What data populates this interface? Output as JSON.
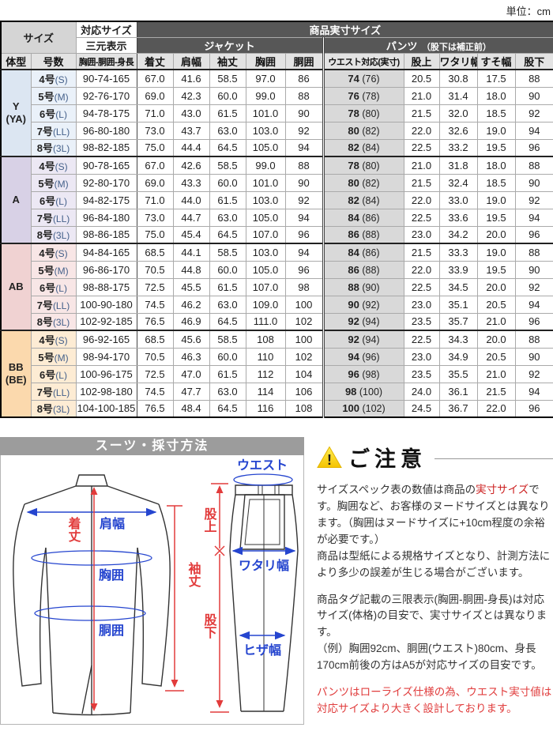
{
  "unit_label": "単位：cm",
  "table": {
    "header": {
      "size_label": "サイズ",
      "taio_size": "対応サイズ",
      "jissun_size": "商品実寸サイズ",
      "sangen": "三元表示",
      "jacket": "ジャケット",
      "pants_label": "パンツ",
      "pants_note": "　（股下は補正前）",
      "columns": [
        "体型",
        "号数",
        "胸囲-胴囲-身長",
        "着丈",
        "肩幅",
        "袖丈",
        "胸囲",
        "胴囲",
        "ウエスト対応(実寸)",
        "股上",
        "ワタリ幅",
        "すそ幅",
        "股下"
      ]
    },
    "groups": [
      {
        "body_type_lines": [
          "Y",
          "(YA)"
        ],
        "color": "#dce6f2",
        "row_color": "#eaf1f9",
        "rows": [
          {
            "size": "4号",
            "size_sub": "(S)",
            "triple": "90-74-165",
            "jacket": [
              "67.0",
              "41.6",
              "58.5",
              "97.0",
              "86"
            ],
            "waist": "74",
            "waist_sub": "(76)",
            "pants": [
              "20.5",
              "30.8",
              "17.5",
              "88"
            ]
          },
          {
            "size": "5号",
            "size_sub": "(M)",
            "triple": "92-76-170",
            "jacket": [
              "69.0",
              "42.3",
              "60.0",
              "99.0",
              "88"
            ],
            "waist": "76",
            "waist_sub": "(78)",
            "pants": [
              "21.0",
              "31.4",
              "18.0",
              "90"
            ]
          },
          {
            "size": "6号",
            "size_sub": "(L)",
            "triple": "94-78-175",
            "jacket": [
              "71.0",
              "43.0",
              "61.5",
              "101.0",
              "90"
            ],
            "waist": "78",
            "waist_sub": "(80)",
            "pants": [
              "21.5",
              "32.0",
              "18.5",
              "92"
            ]
          },
          {
            "size": "7号",
            "size_sub": "(LL)",
            "triple": "96-80-180",
            "jacket": [
              "73.0",
              "43.7",
              "63.0",
              "103.0",
              "92"
            ],
            "waist": "80",
            "waist_sub": "(82)",
            "pants": [
              "22.0",
              "32.6",
              "19.0",
              "94"
            ]
          },
          {
            "size": "8号",
            "size_sub": "(3L)",
            "triple": "98-82-185",
            "jacket": [
              "75.0",
              "44.4",
              "64.5",
              "105.0",
              "94"
            ],
            "waist": "82",
            "waist_sub": "(84)",
            "pants": [
              "22.5",
              "33.2",
              "19.5",
              "96"
            ]
          }
        ]
      },
      {
        "body_type_lines": [
          "A"
        ],
        "color": "#d8d1e6",
        "row_color": "#ece8f4",
        "rows": [
          {
            "size": "4号",
            "size_sub": "(S)",
            "triple": "90-78-165",
            "jacket": [
              "67.0",
              "42.6",
              "58.5",
              "99.0",
              "88"
            ],
            "waist": "78",
            "waist_sub": "(80)",
            "pants": [
              "21.0",
              "31.8",
              "18.0",
              "88"
            ]
          },
          {
            "size": "5号",
            "size_sub": "(M)",
            "triple": "92-80-170",
            "jacket": [
              "69.0",
              "43.3",
              "60.0",
              "101.0",
              "90"
            ],
            "waist": "80",
            "waist_sub": "(82)",
            "pants": [
              "21.5",
              "32.4",
              "18.5",
              "90"
            ]
          },
          {
            "size": "6号",
            "size_sub": "(L)",
            "triple": "94-82-175",
            "jacket": [
              "71.0",
              "44.0",
              "61.5",
              "103.0",
              "92"
            ],
            "waist": "82",
            "waist_sub": "(84)",
            "pants": [
              "22.0",
              "33.0",
              "19.0",
              "92"
            ]
          },
          {
            "size": "7号",
            "size_sub": "(LL)",
            "triple": "96-84-180",
            "jacket": [
              "73.0",
              "44.7",
              "63.0",
              "105.0",
              "94"
            ],
            "waist": "84",
            "waist_sub": "(86)",
            "pants": [
              "22.5",
              "33.6",
              "19.5",
              "94"
            ]
          },
          {
            "size": "8号",
            "size_sub": "(3L)",
            "triple": "98-86-185",
            "jacket": [
              "75.0",
              "45.4",
              "64.5",
              "107.0",
              "96"
            ],
            "waist": "86",
            "waist_sub": "(88)",
            "pants": [
              "23.0",
              "34.2",
              "20.0",
              "96"
            ]
          }
        ]
      },
      {
        "body_type_lines": [
          "AB"
        ],
        "color": "#f0d2d2",
        "row_color": "#f8e6e6",
        "rows": [
          {
            "size": "4号",
            "size_sub": "(S)",
            "triple": "94-84-165",
            "jacket": [
              "68.5",
              "44.1",
              "58.5",
              "103.0",
              "94"
            ],
            "waist": "84",
            "waist_sub": "(86)",
            "pants": [
              "21.5",
              "33.3",
              "19.0",
              "88"
            ]
          },
          {
            "size": "5号",
            "size_sub": "(M)",
            "triple": "96-86-170",
            "jacket": [
              "70.5",
              "44.8",
              "60.0",
              "105.0",
              "96"
            ],
            "waist": "86",
            "waist_sub": "(88)",
            "pants": [
              "22.0",
              "33.9",
              "19.5",
              "90"
            ]
          },
          {
            "size": "6号",
            "size_sub": "(L)",
            "triple": "98-88-175",
            "jacket": [
              "72.5",
              "45.5",
              "61.5",
              "107.0",
              "98"
            ],
            "waist": "88",
            "waist_sub": "(90)",
            "pants": [
              "22.5",
              "34.5",
              "20.0",
              "92"
            ]
          },
          {
            "size": "7号",
            "size_sub": "(LL)",
            "triple": "100-90-180",
            "jacket": [
              "74.5",
              "46.2",
              "63.0",
              "109.0",
              "100"
            ],
            "waist": "90",
            "waist_sub": "(92)",
            "pants": [
              "23.0",
              "35.1",
              "20.5",
              "94"
            ]
          },
          {
            "size": "8号",
            "size_sub": "(3L)",
            "triple": "102-92-185",
            "jacket": [
              "76.5",
              "46.9",
              "64.5",
              "111.0",
              "102"
            ],
            "waist": "92",
            "waist_sub": "(94)",
            "pants": [
              "23.5",
              "35.7",
              "21.0",
              "96"
            ]
          }
        ]
      },
      {
        "body_type_lines": [
          "BB",
          "(BE)"
        ],
        "color": "#fbd9ad",
        "row_color": "#fdecd4",
        "rows": [
          {
            "size": "4号",
            "size_sub": "(S)",
            "triple": "96-92-165",
            "jacket": [
              "68.5",
              "45.6",
              "58.5",
              "108",
              "100"
            ],
            "waist": "92",
            "waist_sub": "(94)",
            "pants": [
              "22.5",
              "34.3",
              "20.0",
              "88"
            ]
          },
          {
            "size": "5号",
            "size_sub": "(M)",
            "triple": "98-94-170",
            "jacket": [
              "70.5",
              "46.3",
              "60.0",
              "110",
              "102"
            ],
            "waist": "94",
            "waist_sub": "(96)",
            "pants": [
              "23.0",
              "34.9",
              "20.5",
              "90"
            ]
          },
          {
            "size": "6号",
            "size_sub": "(L)",
            "triple": "100-96-175",
            "jacket": [
              "72.5",
              "47.0",
              "61.5",
              "112",
              "104"
            ],
            "waist": "96",
            "waist_sub": "(98)",
            "pants": [
              "23.5",
              "35.5",
              "21.0",
              "92"
            ]
          },
          {
            "size": "7号",
            "size_sub": "(LL)",
            "triple": "102-98-180",
            "jacket": [
              "74.5",
              "47.7",
              "63.0",
              "114",
              "106"
            ],
            "waist": "98",
            "waist_sub": "(100)",
            "pants": [
              "24.0",
              "36.1",
              "21.5",
              "94"
            ]
          },
          {
            "size": "8号",
            "size_sub": "(3L)",
            "triple": "104-100-185",
            "jacket": [
              "76.5",
              "48.4",
              "64.5",
              "116",
              "108"
            ],
            "waist": "100",
            "waist_sub": "(102)",
            "pants": [
              "24.5",
              "36.7",
              "22.0",
              "96"
            ]
          }
        ]
      }
    ]
  },
  "measure": {
    "title": "スーツ・採寸方法",
    "labels": {
      "shoulder": "肩幅",
      "length": "着丈",
      "chest": "胸囲",
      "waist_j": "胴囲",
      "sleeve": "袖丈",
      "waist_p": "ウエスト",
      "rise": "股上",
      "thigh": "ワタリ幅",
      "inseam": "股下",
      "knee": "ヒザ幅"
    },
    "colors": {
      "blue": "#2545cf",
      "red": "#e23b3b"
    }
  },
  "notice": {
    "warning_icon": "warning-triangle",
    "warning_glyph": "!",
    "title": "ご注意",
    "p1_before": "サイズスペック表の数値は商品の",
    "p1_red": "実寸サイズ",
    "p1_after": "です。胸囲など、お客様のヌードサイズとは異なります。（胸囲はヌードサイズに+10cm程度の余裕が必要です。）",
    "p2": "商品は型紙による規格サイズとなり、計測方法により多少の誤差が生じる場合がございます。",
    "p3": "商品タグ記載の三限表示(胸囲-胴囲-身長)は対応サイズ(体格)の目安で、実寸サイズとは異なります。",
    "p4": "（例）胸囲92cm、胴囲(ウエスト)80cm、身長170cm前後の方はA5が対応サイズの目安です。",
    "p5": "パンツはローライズ仕様の為、ウエスト実寸値は対応サイズより大きく設計しております。",
    "colors": {
      "inline_red": "#cc2020",
      "para_red": "#e03c3c"
    }
  }
}
